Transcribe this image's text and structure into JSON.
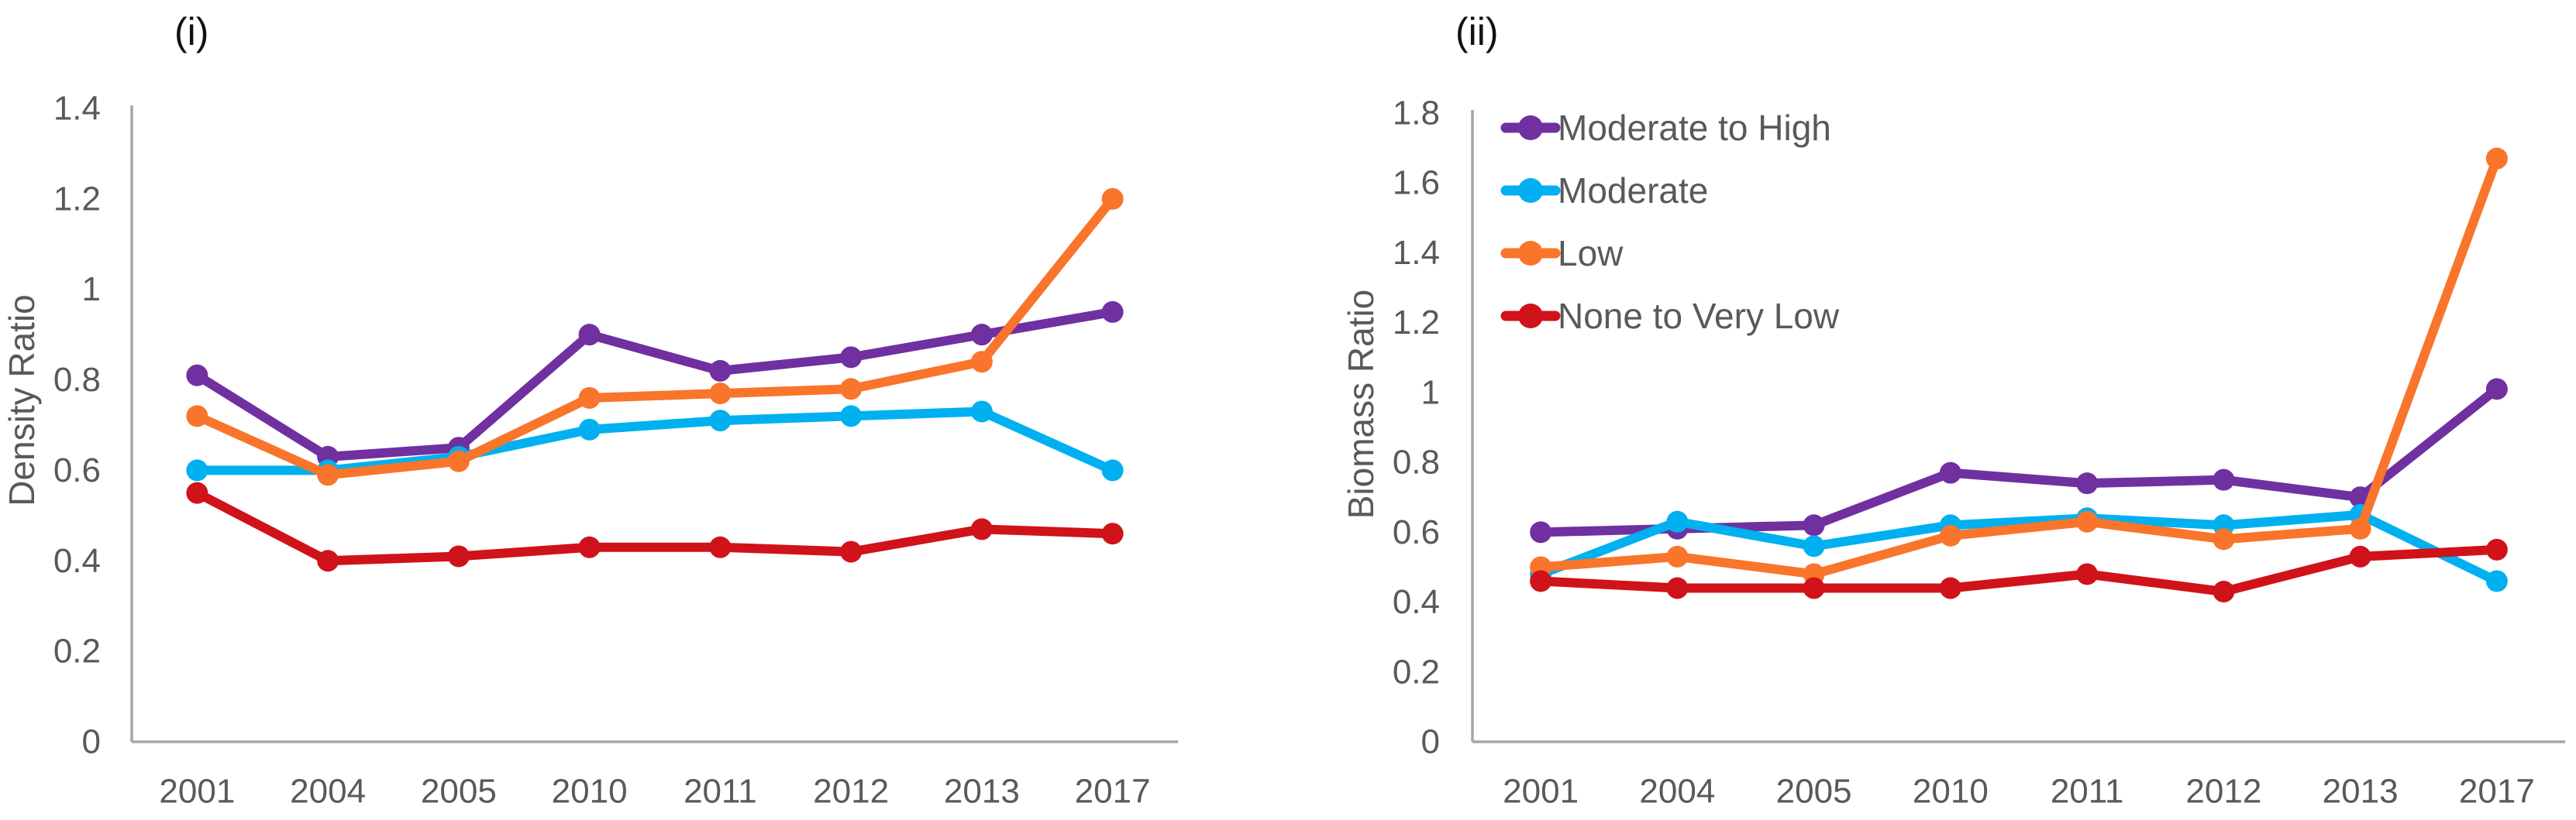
{
  "page": {
    "background": "#ffffff",
    "axis_line_color": "#A6A6A6",
    "tick_label_color": "#595959",
    "title_color": "#111111"
  },
  "chart_data": [
    {
      "type": "line",
      "title": "(i)",
      "ylabel": "Density Ratio",
      "xlabel": "",
      "categories": [
        "2001",
        "2004",
        "2005",
        "2010",
        "2011",
        "2012",
        "2013",
        "2017"
      ],
      "ylim": [
        0,
        1.4
      ],
      "ytick_step": 0.2,
      "ytick_labels": [
        "0",
        "0.2",
        "0.4",
        "0.6",
        "0.8",
        "1",
        "1.2",
        "1.4"
      ],
      "grid": false,
      "legend_position": "none",
      "series": [
        {
          "name": "Moderate to High",
          "color": "#7030A0",
          "values": [
            0.81,
            0.63,
            0.65,
            0.9,
            0.82,
            0.85,
            0.9,
            0.95
          ]
        },
        {
          "name": "Moderate",
          "color": "#00B0F0",
          "values": [
            0.6,
            0.6,
            0.63,
            0.69,
            0.71,
            0.72,
            0.73,
            0.6
          ]
        },
        {
          "name": "Low",
          "color": "#F8752B",
          "values": [
            0.72,
            0.59,
            0.62,
            0.76,
            0.77,
            0.78,
            0.84,
            1.2
          ]
        },
        {
          "name": "None to Very Low",
          "color": "#D0121A",
          "values": [
            0.55,
            0.4,
            0.41,
            0.43,
            0.43,
            0.42,
            0.47,
            0.46
          ]
        }
      ]
    },
    {
      "type": "line",
      "title": "(ii)",
      "ylabel": "Biomass Ratio",
      "xlabel": "",
      "categories": [
        "2001",
        "2004",
        "2005",
        "2010",
        "2011",
        "2012",
        "2013",
        "2017"
      ],
      "ylim": [
        0,
        1.8
      ],
      "ytick_step": 0.2,
      "ytick_labels": [
        "0",
        "0.2",
        "0.4",
        "0.6",
        "0.8",
        "1",
        "1.2",
        "1.4",
        "1.6",
        "1.8"
      ],
      "grid": false,
      "legend_position": "inside-top-left",
      "legend_labels": [
        "Moderate to High",
        "Moderate",
        "Low",
        "None to Very Low"
      ],
      "series": [
        {
          "name": "Moderate to High",
          "color": "#7030A0",
          "values": [
            0.6,
            0.61,
            0.62,
            0.77,
            0.74,
            0.75,
            0.7,
            1.01
          ]
        },
        {
          "name": "Moderate",
          "color": "#00B0F0",
          "values": [
            0.48,
            0.63,
            0.56,
            0.62,
            0.64,
            0.62,
            0.65,
            0.46
          ]
        },
        {
          "name": "Low",
          "color": "#F8752B",
          "values": [
            0.5,
            0.53,
            0.48,
            0.59,
            0.63,
            0.58,
            0.61,
            1.67
          ]
        },
        {
          "name": "None to Very Low",
          "color": "#D0121A",
          "values": [
            0.46,
            0.44,
            0.44,
            0.44,
            0.48,
            0.43,
            0.53,
            0.55
          ]
        }
      ]
    }
  ]
}
